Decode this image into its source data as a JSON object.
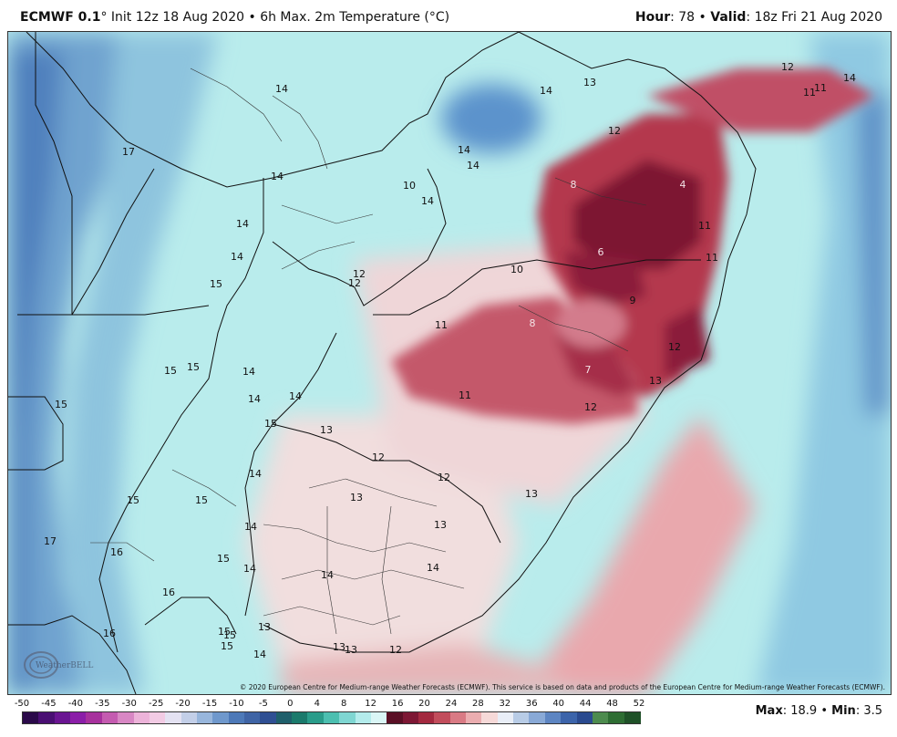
{
  "header": {
    "model": "ECMWF 0.1",
    "degree": "°",
    "init_text": "Init 12z 18 Aug 2020",
    "sep1": "•",
    "product": "6h Max. 2m Temperature (°C)",
    "hour_label": "Hour",
    "hour_value": ": 78",
    "sep2": "•",
    "valid_label": "Valid",
    "valid_value": ": 18z Fri 21 Aug 2020"
  },
  "map": {
    "contour_labels": [
      "14",
      "13",
      "14",
      "12",
      "11",
      "11",
      "14",
      "17",
      "14",
      "14",
      "12",
      "14",
      "10",
      "14",
      "14",
      "8",
      "4",
      "14",
      "11",
      "15",
      "12",
      "6",
      "11",
      "12",
      "10",
      "9",
      "15",
      "11",
      "8",
      "12",
      "15",
      "15",
      "14",
      "7",
      "13",
      "14",
      "11",
      "14",
      "12",
      "15",
      "13",
      "12",
      "14",
      "12",
      "15",
      "15",
      "13",
      "13",
      "14",
      "13",
      "17",
      "16",
      "15",
      "14",
      "14",
      "16",
      "14",
      "16",
      "15",
      "15",
      "13",
      "15",
      "14",
      "13",
      "13",
      "12"
    ],
    "copyright": "© 2020 European Centre for Medium-range Weather Forecasts (ECMWF). This service is based on data and products of the European Centre for Medium-range Weather Forecasts (ECMWF).",
    "watermark": "WeatherBELL"
  },
  "colorbar": {
    "ticks": [
      "-50",
      "-45",
      "-40",
      "-35",
      "-30",
      "-25",
      "-20",
      "-15",
      "-10",
      "-5",
      "0",
      "4",
      "8",
      "12",
      "16",
      "20",
      "24",
      "28",
      "32",
      "36",
      "40",
      "44",
      "48",
      "52"
    ],
    "colors": [
      "#2b0a4a",
      "#4a0f73",
      "#6a1592",
      "#8b1ea8",
      "#a7319d",
      "#c45bb0",
      "#d887c4",
      "#ecb3d9",
      "#f2cbe4",
      "#e4e2f2",
      "#c3cfe8",
      "#98b6dc",
      "#6f98cc",
      "#4d79b8",
      "#3f64a5",
      "#2f4f93",
      "#1f5f6b",
      "#1b7a6c",
      "#2a9c8a",
      "#4cbfb0",
      "#7fd6d2",
      "#b4ecec",
      "#daf6f6",
      "#5a0f25",
      "#7d1734",
      "#a3293f",
      "#c24d5c",
      "#d97a84",
      "#ebadb0",
      "#f6d9d8",
      "#e9eef7",
      "#b8cce6",
      "#89a9d6",
      "#5d85c2",
      "#3c64aa",
      "#2a4a8f",
      "#4d8b4e",
      "#2e6d33",
      "#1f5128"
    ]
  },
  "maxmin": {
    "max_label": "Max",
    "max_value": ": 18.9",
    "sep": "•",
    "min_label": "Min",
    "min_value": ": 3.5"
  }
}
